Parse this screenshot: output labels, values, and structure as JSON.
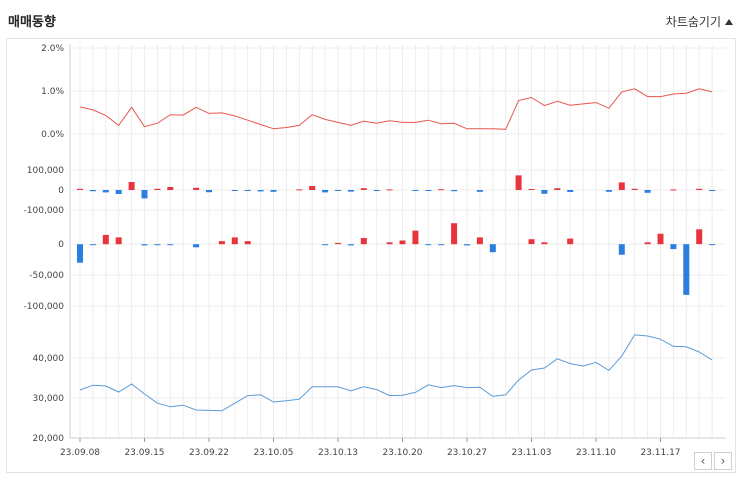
{
  "header": {
    "title": "매매동향",
    "toggle_label": "차트숨기기"
  },
  "icons": {
    "toggle": "triangle-up-icon",
    "prev": "chevron-left-icon",
    "next": "chevron-right-icon"
  },
  "nav": {
    "prev": "‹",
    "next": "›"
  },
  "colors": {
    "positive": "#e8353d",
    "negative": "#2a7ee0",
    "rate_line": "#e8584f",
    "price_line": "#5a9bd8",
    "grid": "#ededed"
  },
  "chart_data": [
    {
      "type": "line",
      "ylim": [
        0,
        2.0
      ],
      "yticks": [
        "0.0%",
        "1.0%",
        "2.0%"
      ],
      "ytick_values": [
        0,
        1.0,
        2.0
      ],
      "values": [
        0.63,
        0.56,
        0.43,
        0.2,
        0.62,
        0.17,
        0.25,
        0.45,
        0.44,
        0.62,
        0.48,
        0.49,
        0.42,
        0.32,
        0.22,
        0.12,
        0.15,
        0.2,
        0.45,
        0.34,
        0.27,
        0.2,
        0.3,
        0.25,
        0.31,
        0.27,
        0.27,
        0.32,
        0.24,
        0.25,
        0.12,
        0.12,
        0.12,
        0.11,
        0.78,
        0.85,
        0.66,
        0.76,
        0.67,
        0.7,
        0.73,
        0.6,
        0.98,
        1.05,
        0.87,
        0.87,
        0.93,
        0.95,
        1.05,
        0.98
      ]
    },
    {
      "type": "bar",
      "ylim": [
        -140000,
        140000
      ],
      "yticks": [
        "-100,000",
        "0",
        "100,000"
      ],
      "ytick_values": [
        -100000,
        0,
        100000
      ],
      "values": [
        6000,
        -6000,
        -12000,
        -20000,
        40000,
        -42000,
        6000,
        15000,
        0,
        11000,
        -11000,
        0,
        -4000,
        -5000,
        -7000,
        -9000,
        0,
        3000,
        20000,
        -12000,
        -3000,
        -8000,
        9000,
        -3000,
        3000,
        0,
        -2000,
        -3000,
        4000,
        -6000,
        0,
        -9000,
        0,
        0,
        73000,
        5000,
        -19000,
        9000,
        -10000,
        0,
        0,
        -9000,
        38000,
        6000,
        -14000,
        0,
        3000,
        0,
        6000,
        -5000
      ]
    },
    {
      "type": "bar",
      "ylim": [
        -100000,
        10000
      ],
      "yticks": [
        "-100,000",
        "-50,000",
        "0"
      ],
      "ytick_values": [
        -100000,
        -50000,
        0
      ],
      "values": [
        -30000,
        -500,
        15000,
        11000,
        0,
        -2000,
        -1000,
        -1000,
        0,
        -5000,
        0,
        5000,
        11000,
        5000,
        0,
        0,
        0,
        0,
        0,
        -1000,
        2000,
        -2000,
        10000,
        0,
        3000,
        6000,
        22000,
        -1000,
        -1000,
        34000,
        -2000,
        11000,
        -13000,
        0,
        0,
        8000,
        3000,
        0,
        9000,
        0,
        0,
        0,
        -17000,
        0,
        3000,
        17000,
        -8000,
        -82000,
        24000,
        -1000
      ]
    },
    {
      "type": "line",
      "ylim": [
        20000,
        50000
      ],
      "yticks": [
        "20,000",
        "30,000",
        "40,000"
      ],
      "ytick_values": [
        20000,
        30000,
        40000
      ],
      "values": [
        32000,
        33200,
        33000,
        31500,
        33500,
        31000,
        28700,
        27800,
        28200,
        27000,
        26900,
        26800,
        28700,
        30600,
        30800,
        29000,
        29300,
        29700,
        32800,
        32800,
        32800,
        31800,
        32800,
        32100,
        30600,
        30700,
        31400,
        33300,
        32600,
        33100,
        32600,
        32700,
        30400,
        30800,
        34500,
        37000,
        37500,
        39800,
        38600,
        38000,
        38900,
        36900,
        40500,
        45800,
        45500,
        44700,
        42900,
        42800,
        41500,
        39500
      ]
    },
    {
      "type": "table",
      "x_labels": [
        "23.09.08",
        "23.09.15",
        "23.09.22",
        "23.10.05",
        "23.10.13",
        "23.10.20",
        "23.10.27",
        "23.11.03",
        "23.11.10",
        "23.11.17"
      ],
      "x_label_indices": [
        0,
        5,
        10,
        15,
        20,
        25,
        30,
        35,
        40,
        45
      ]
    }
  ]
}
